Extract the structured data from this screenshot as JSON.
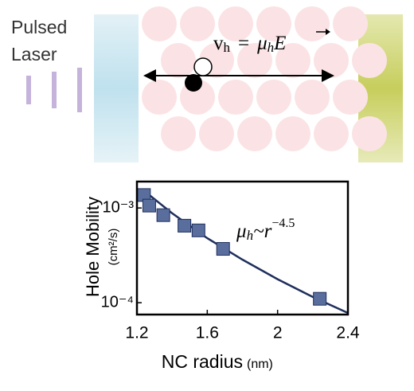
{
  "diagram": {
    "laser": [
      "Pulsed",
      "Laser"
    ],
    "equation": {
      "v": "v",
      "v_sub": "h",
      "eq": "=",
      "mu": "μ",
      "mu_sub": "h",
      "field": "E"
    }
  },
  "chart_data": {
    "type": "scatter",
    "xlabel": "NC radius",
    "xlabel_unit": "(nm)",
    "ylabel": "Hole Mobility",
    "ylabel_unit": "(cm²/s)",
    "annotation": {
      "mu": "μ",
      "sub": "h",
      "rel": "~r",
      "exp": "−4.5"
    },
    "xlim": [
      1.2,
      2.4
    ],
    "xticks": [
      1.2,
      1.6,
      2,
      2.4
    ],
    "ylim": [
      7.5e-05,
      0.0019
    ],
    "yscale": "log",
    "yticks": [
      {
        "value": 0.001,
        "label": "10⁻³"
      },
      {
        "value": 0.0001,
        "label": "10⁻⁴"
      }
    ],
    "series": [
      {
        "kind": "scatter",
        "color": "#5a6e9e",
        "x": [
          1.24,
          1.27,
          1.35,
          1.47,
          1.55,
          1.69,
          2.24
        ],
        "values": [
          0.00137,
          0.00106,
          0.00084,
          0.00065,
          0.00058,
          0.00037,
          0.00011
        ]
      },
      {
        "kind": "line",
        "color": "#1f2f5c",
        "x": [
          1.24,
          1.4,
          1.6,
          1.8,
          2.0,
          2.2,
          2.4
        ],
        "values": [
          0.00152,
          0.00088,
          0.00048,
          0.000285,
          0.000177,
          0.000115,
          7.8e-05
        ]
      }
    ]
  }
}
